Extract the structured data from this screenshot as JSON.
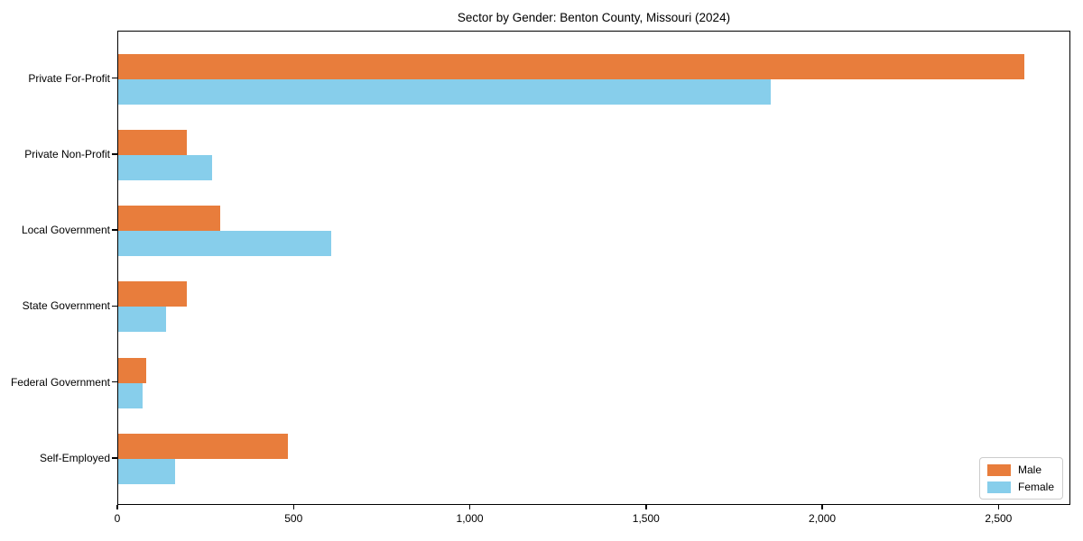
{
  "title": "Sector by Gender: Benton County, Missouri (2024)",
  "colors": {
    "male": "#e87d3c",
    "female": "#87ceeb",
    "axis": "#000000",
    "legend_border": "#cccccc",
    "background": "#ffffff"
  },
  "legend": {
    "position": "lower right",
    "entries": [
      "Male",
      "Female"
    ]
  },
  "chart_data": {
    "type": "bar",
    "orientation": "horizontal",
    "title": "Sector by Gender: Benton County, Missouri (2024)",
    "categories": [
      "Private For-Profit",
      "Private Non-Profit",
      "Local Government",
      "State Government",
      "Federal Government",
      "Self-Employed"
    ],
    "series": [
      {
        "name": "Male",
        "color": "#e87d3c",
        "values": [
          2575,
          195,
          290,
          196,
          79,
          483
        ]
      },
      {
        "name": "Female",
        "color": "#87ceeb",
        "values": [
          1855,
          268,
          605,
          136,
          69,
          162
        ]
      }
    ],
    "xlabel": "",
    "ylabel": "",
    "xlim": [
      0,
      2704
    ],
    "x_ticks": [
      0,
      500,
      1000,
      1500,
      2000,
      2500
    ],
    "x_tick_labels": [
      "0",
      "500",
      "1,000",
      "1,500",
      "2,000",
      "2,500"
    ],
    "grid": false,
    "legend_position": "lower right"
  }
}
